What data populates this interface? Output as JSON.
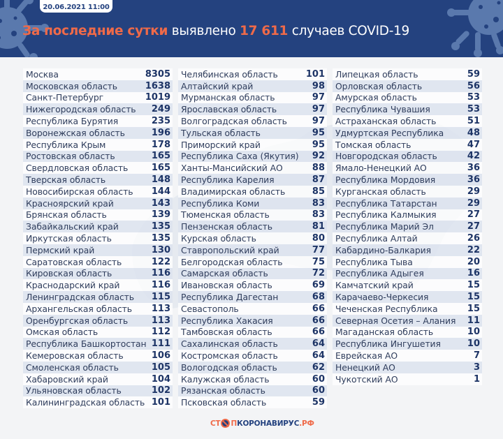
{
  "header": {
    "date": "20.06.2021 11:00",
    "headline_accent": "За последние сутки",
    "headline_mid": " выявлено ",
    "headline_count": "17 611",
    "headline_tail": " случаев COVID-19"
  },
  "colors": {
    "header_bg": "#24427f",
    "accent": "#ef6a49",
    "number": "#1d3466",
    "page_bg": "#f3f4f6"
  },
  "columns": [
    [
      {
        "name": "Москва",
        "value": "8305"
      },
      {
        "name": "Московская область",
        "value": "1638"
      },
      {
        "name": "Санкт-Петербург",
        "value": "1019"
      },
      {
        "name": "Нижегородская область",
        "value": "249"
      },
      {
        "name": "Республика Бурятия",
        "value": "235"
      },
      {
        "name": "Воронежская область",
        "value": "196"
      },
      {
        "name": "Республика Крым",
        "value": "178"
      },
      {
        "name": "Ростовская область",
        "value": "165"
      },
      {
        "name": "Свердловская область",
        "value": "165"
      },
      {
        "name": "Тверская область",
        "value": "148"
      },
      {
        "name": "Новосибирская область",
        "value": "144"
      },
      {
        "name": "Красноярский край",
        "value": "143"
      },
      {
        "name": "Брянская область",
        "value": "139"
      },
      {
        "name": "Забайкальский край",
        "value": "135"
      },
      {
        "name": "Иркутская область",
        "value": "135"
      },
      {
        "name": "Пермский край",
        "value": "130"
      },
      {
        "name": "Саратовская область",
        "value": "122"
      },
      {
        "name": "Кировская область",
        "value": "116"
      },
      {
        "name": "Краснодарский край",
        "value": "116"
      },
      {
        "name": "Ленинградская область",
        "value": "115"
      },
      {
        "name": "Архангельская область",
        "value": "113"
      },
      {
        "name": "Оренбургская область",
        "value": "113"
      },
      {
        "name": "Омская область",
        "value": "112"
      },
      {
        "name": "Республика Башкортостан",
        "value": "111"
      },
      {
        "name": "Кемеровская область",
        "value": "106"
      },
      {
        "name": "Смоленская область",
        "value": "105"
      },
      {
        "name": "Хабаровский край",
        "value": "104"
      },
      {
        "name": "Ульяновская область",
        "value": "102"
      },
      {
        "name": "Калининградская область",
        "value": "101"
      }
    ],
    [
      {
        "name": "Челябинская область",
        "value": "101"
      },
      {
        "name": "Алтайский край",
        "value": "98"
      },
      {
        "name": "Мурманская область",
        "value": "97"
      },
      {
        "name": "Ярославская область",
        "value": "97"
      },
      {
        "name": "Волгоградская область",
        "value": "97"
      },
      {
        "name": "Тульская область",
        "value": "95"
      },
      {
        "name": "Приморский край",
        "value": "95"
      },
      {
        "name": "Республика Саха (Якутия)",
        "value": "92"
      },
      {
        "name": "Ханты-Мансийский АО",
        "value": "88"
      },
      {
        "name": "Республика Карелия",
        "value": "87"
      },
      {
        "name": "Владимирская область",
        "value": "85"
      },
      {
        "name": "Республика Коми",
        "value": "83"
      },
      {
        "name": "Тюменская область",
        "value": "83"
      },
      {
        "name": "Пензенская область",
        "value": "81"
      },
      {
        "name": "Курская область",
        "value": "80"
      },
      {
        "name": "Ставропольский край",
        "value": "77"
      },
      {
        "name": "Белгородская область",
        "value": "75"
      },
      {
        "name": "Самарская область",
        "value": "72"
      },
      {
        "name": "Ивановская область",
        "value": "69"
      },
      {
        "name": "Республика Дагестан",
        "value": "68"
      },
      {
        "name": "Севастополь",
        "value": "66"
      },
      {
        "name": "Республика Хакасия",
        "value": "66"
      },
      {
        "name": "Тамбовская область",
        "value": "66"
      },
      {
        "name": "Сахалинская область",
        "value": "64"
      },
      {
        "name": "Костромская область",
        "value": "64"
      },
      {
        "name": "Вологодская область",
        "value": "62"
      },
      {
        "name": "Калужская область",
        "value": "60"
      },
      {
        "name": "Рязанская область",
        "value": "60"
      },
      {
        "name": "Псковская область",
        "value": "59"
      }
    ],
    [
      {
        "name": "Липецкая область",
        "value": "59"
      },
      {
        "name": "Орловская область",
        "value": "56"
      },
      {
        "name": "Амурская область",
        "value": "53"
      },
      {
        "name": "Республика Чувашия",
        "value": "53"
      },
      {
        "name": "Астраханская область",
        "value": "51"
      },
      {
        "name": "Удмуртская Республика",
        "value": "48"
      },
      {
        "name": "Томская область",
        "value": "47"
      },
      {
        "name": "Новгородская область",
        "value": "42"
      },
      {
        "name": "Ямало-Ненецкий АО",
        "value": "36"
      },
      {
        "name": "Республика Мордовия",
        "value": "36"
      },
      {
        "name": "Курганская область",
        "value": "29"
      },
      {
        "name": "Республика Татарстан",
        "value": "29"
      },
      {
        "name": "Республика Калмыкия",
        "value": "27"
      },
      {
        "name": "Республика Марий Эл",
        "value": "27"
      },
      {
        "name": "Республика Алтай",
        "value": "26"
      },
      {
        "name": "Кабардино-Балкария",
        "value": "22"
      },
      {
        "name": "Республика Тыва",
        "value": "20"
      },
      {
        "name": "Республика Адыгея",
        "value": "16"
      },
      {
        "name": "Камчатский край",
        "value": "15"
      },
      {
        "name": "Карачаево-Черкесия",
        "value": "15"
      },
      {
        "name": "Чеченская Республика",
        "value": "15"
      },
      {
        "name": "Северная Осетия – Алания",
        "value": "11"
      },
      {
        "name": "Магаданская область",
        "value": "10"
      },
      {
        "name": "Республика Ингушетия",
        "value": "10"
      },
      {
        "name": "Еврейская АО",
        "value": "7"
      },
      {
        "name": "Ненецкий АО",
        "value": "3"
      },
      {
        "name": "Чукотский АО",
        "value": "1"
      }
    ]
  ],
  "footer": {
    "logo_part1": "СТ",
    "logo_part2": "П",
    "logo_part3": "КОРОНАВИРУС",
    "logo_part4": ".РФ"
  }
}
